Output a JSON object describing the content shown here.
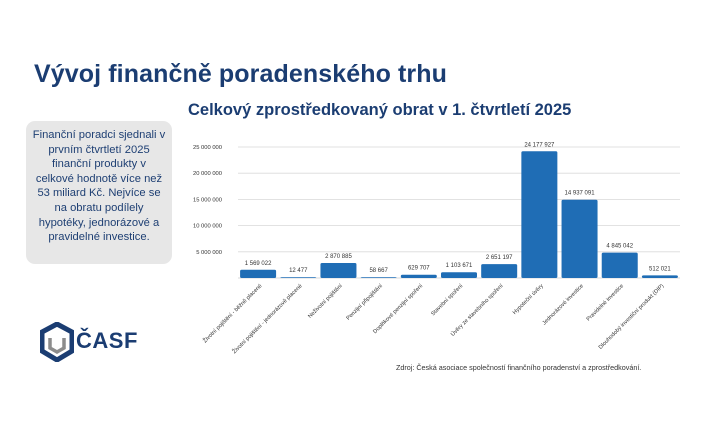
{
  "page": {
    "title": "Vývoj finančně poradenského trhu",
    "summary": "Finanční poradci sjednali v prvním čtvrtletí 2025 finanční produkty v celkové hodnotě více než 53 miliard Kč. Nejvíce se na obratu podílely hypotéky, jednorázové a pravidelné investice.",
    "source": "Zdroj: Česká asociace společností finančního poradenství a zprostředkování.",
    "logo_text": "ČASF"
  },
  "colors": {
    "bar": "#1f6db5",
    "title": "#1b3d72",
    "grid": "#d9d9d9",
    "logo_dark": "#1b3d72",
    "logo_gray": "#8c8c8c"
  },
  "icons": {
    "logo": "casf-shield-icon"
  },
  "chart_data": {
    "type": "bar",
    "title": "Celkový zprostředkovaný obrat v 1. čtvrtletí 2025",
    "xlabel": "",
    "ylabel": "",
    "ylim": [
      0,
      25000000
    ],
    "yticks": [
      "5 000 000",
      "10 000 000",
      "15 000 000",
      "20 000 000",
      "25 000 000"
    ],
    "grid": true,
    "categories": [
      "Životní pojištění - běžně placené",
      "Životní pojištění - jednorázově placené",
      "Neživotní pojištění",
      "Penzijní připojištění",
      "Doplňkové penzijní spoření",
      "Stavební spoření",
      "Úvěry ze stavebního spoření",
      "Hypoteční úvěry",
      "Jednorázové investice",
      "Pravidelné investice",
      "Dlouhodobý investiční produkt (DIP)"
    ],
    "values": [
      1569022,
      12477,
      2870885,
      58667,
      629707,
      1103671,
      2651197,
      24177927,
      14937091,
      4845042,
      512021
    ],
    "value_labels": [
      "1 569 022",
      "12 477",
      "2 870 885",
      "58 667",
      "629 707",
      "1 103 671",
      "2 651 197",
      "24 177 927",
      "14 937 091",
      "4 845 042",
      "512 021"
    ]
  }
}
